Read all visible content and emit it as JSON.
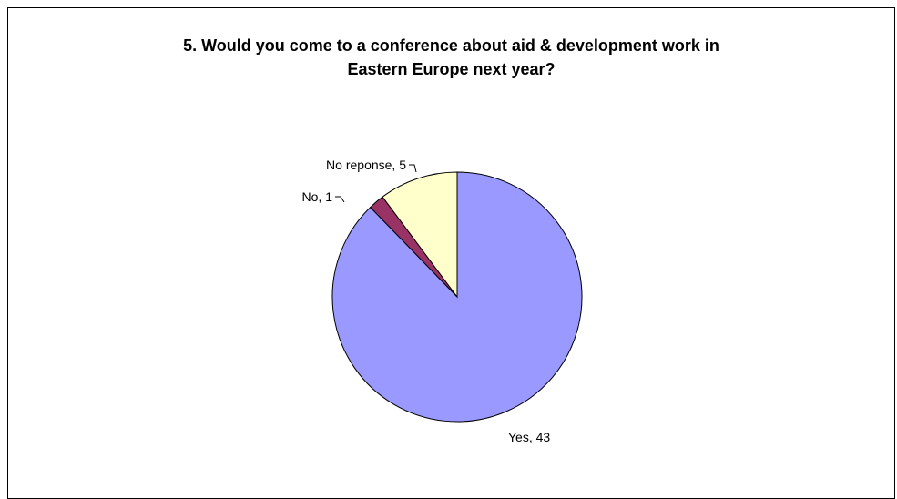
{
  "chart_data": {
    "type": "pie",
    "title_lines": [
      "5. Would you come to a conference about aid & development work in",
      "Eastern Europe next year?"
    ],
    "slices": [
      {
        "name": "Yes",
        "value": 43,
        "label": "Yes, 43",
        "color": "#9999ff"
      },
      {
        "name": "No",
        "value": 1,
        "label": "No, 1",
        "color": "#993366"
      },
      {
        "name": "No reponse",
        "value": 5,
        "label": "No reponse, 5",
        "color": "#ffffcc"
      }
    ],
    "start": "12 o'clock",
    "direction": "clockwise",
    "legend": "none"
  }
}
